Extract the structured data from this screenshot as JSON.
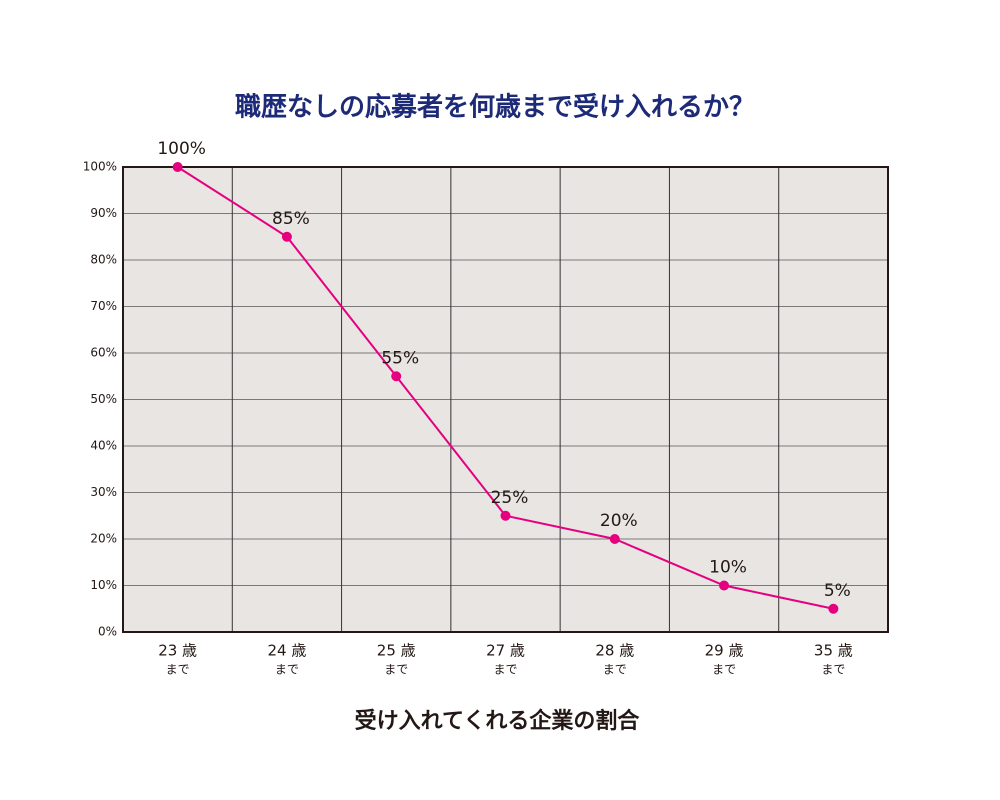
{
  "chart_data": {
    "type": "line",
    "title": "職歴なしの応募者を何歳まで受け入れるか？",
    "x_label": "受け入れてくれる企業の割合",
    "categories": [
      [
        "23 歳",
        "まで"
      ],
      [
        "24 歳",
        "まで"
      ],
      [
        "25 歳",
        "まで"
      ],
      [
        "27 歳",
        "まで"
      ],
      [
        "28 歳",
        "まで"
      ],
      [
        "29 歳",
        "まで"
      ],
      [
        "35 歳",
        "まで"
      ]
    ],
    "series": [
      {
        "name": "受け入れてくれる企業の割合",
        "color": "#e4007f",
        "values": [
          100,
          85,
          55,
          25,
          20,
          10,
          5
        ],
        "value_labels": [
          "100%",
          "85%",
          "55%",
          "25%",
          "20%",
          "10%",
          "5%"
        ]
      }
    ],
    "ylim": [
      0,
      100
    ],
    "yticks": [
      {
        "value": 0,
        "label": "0%"
      },
      {
        "value": 10,
        "label": "10%"
      },
      {
        "value": 20,
        "label": "20%"
      },
      {
        "value": 30,
        "label": "30%"
      },
      {
        "value": 40,
        "label": "40%"
      },
      {
        "value": 50,
        "label": "50%"
      },
      {
        "value": 60,
        "label": "60%"
      },
      {
        "value": 70,
        "label": "70%"
      },
      {
        "value": 80,
        "label": "80%"
      },
      {
        "value": 90,
        "label": "90%"
      },
      {
        "value": 100,
        "label": "100%"
      }
    ],
    "grid": true
  }
}
